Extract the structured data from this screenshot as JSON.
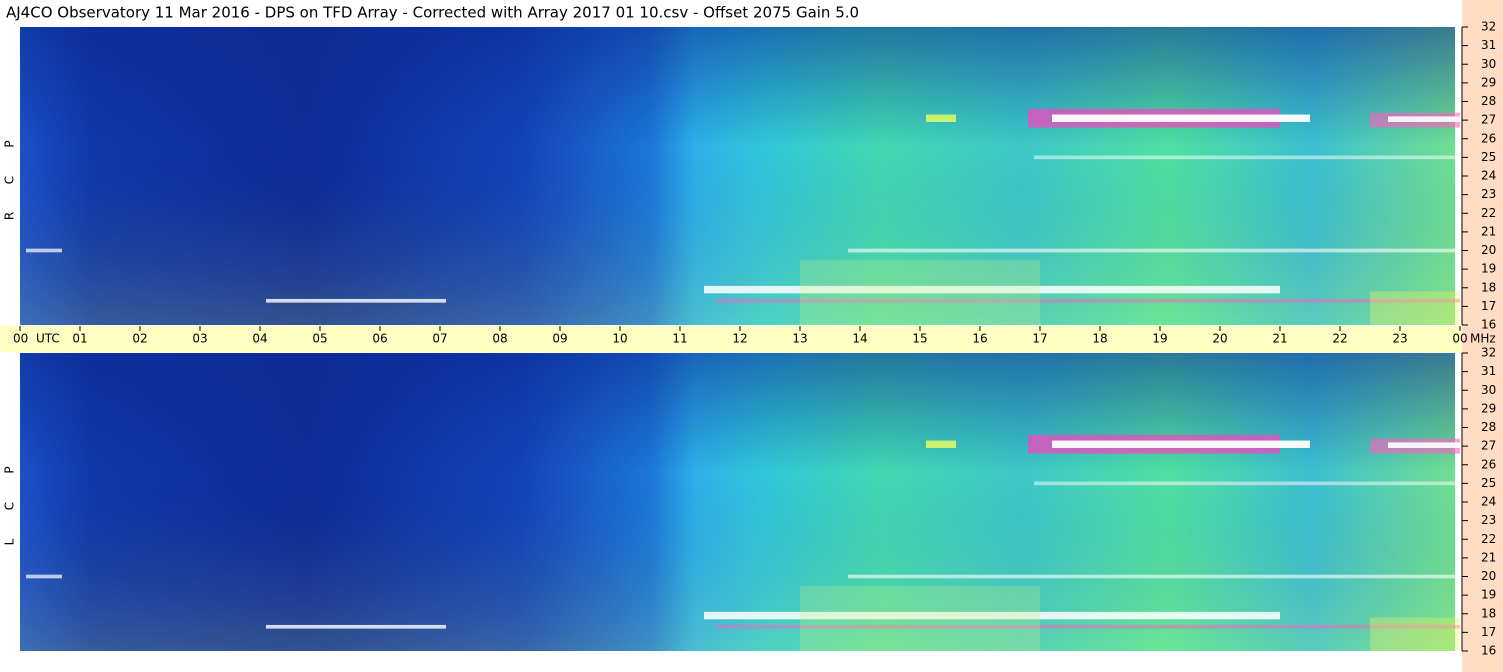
{
  "title": "AJ4CO Observatory  11 Mar 2016  -  DPS on TFD Array  -  Corrected with Array 2017 01 10.csv  -  Offset 2075  Gain 5.0",
  "panels": [
    {
      "label": [
        "R",
        "C",
        "P"
      ]
    },
    {
      "label": [
        "L",
        "C",
        "P"
      ]
    }
  ],
  "time_axis": {
    "hours": [
      "00",
      "01",
      "02",
      "03",
      "04",
      "05",
      "06",
      "07",
      "08",
      "09",
      "10",
      "11",
      "12",
      "13",
      "14",
      "15",
      "16",
      "17",
      "18",
      "19",
      "20",
      "21",
      "22",
      "23",
      "00"
    ],
    "unit": "UTC",
    "freq_unit": "MHz"
  },
  "freq_axis": {
    "range": [
      16,
      32
    ],
    "ticks": [
      16,
      17,
      18,
      19,
      20,
      21,
      22,
      23,
      24,
      25,
      26,
      27,
      28,
      29,
      30,
      31,
      32
    ]
  }
}
